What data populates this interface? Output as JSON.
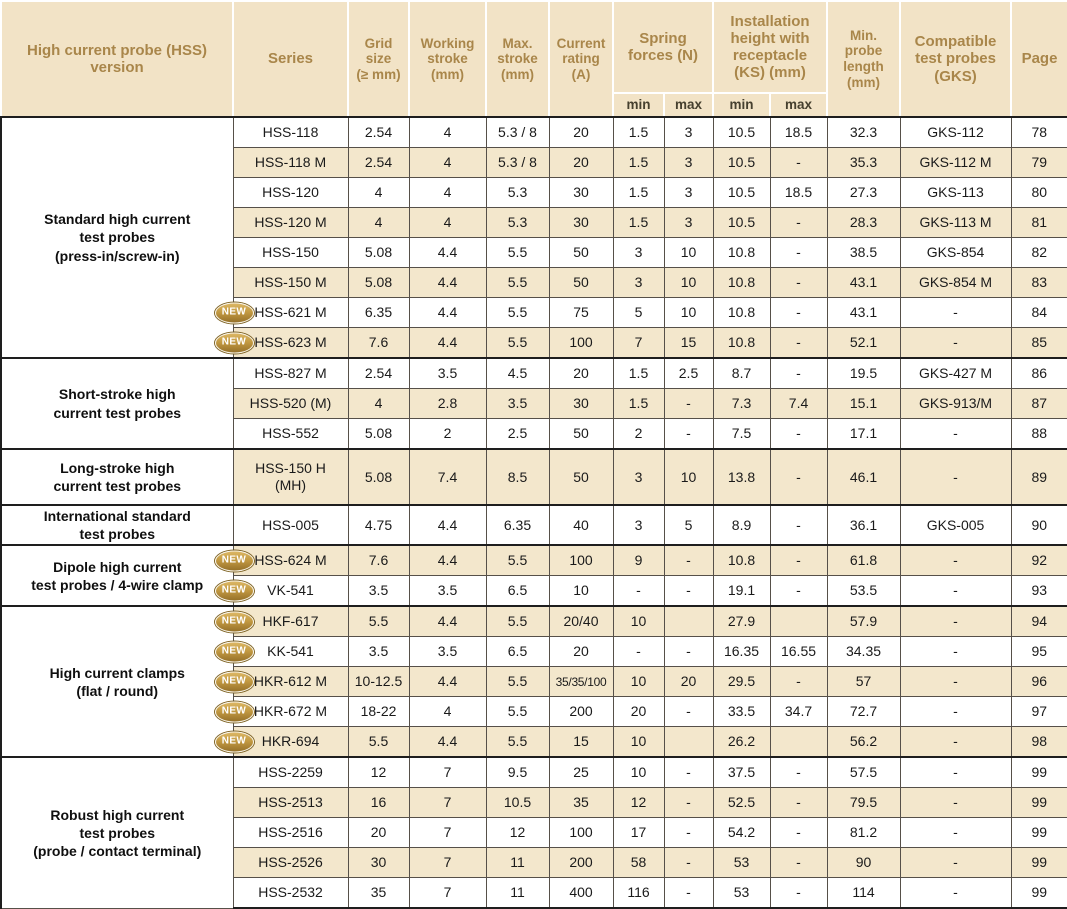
{
  "new_badge": "NEW",
  "table": {
    "columns": [
      {
        "id": "version",
        "label": "High current probe (HSS)\nversion"
      },
      {
        "id": "series",
        "label": "Series"
      },
      {
        "id": "grid",
        "label": "Grid\nsize\n(≥ mm)",
        "small": true
      },
      {
        "id": "stroke",
        "label": "Working\nstroke\n(mm)",
        "small": true
      },
      {
        "id": "max-stroke",
        "label": "Max.\nstroke\n(mm)",
        "small": true
      },
      {
        "id": "current",
        "label": "Current\nrating\n(A)",
        "small": true
      },
      {
        "id": "spring",
        "label": "Spring\nforces (N)",
        "subs": [
          "min",
          "max"
        ]
      },
      {
        "id": "install",
        "label": "Installation\nheight with\nreceptacle\n(KS) (mm)",
        "subs": [
          "min",
          "max"
        ]
      },
      {
        "id": "min-length",
        "label": "Min.\nprobe\nlength\n(mm)",
        "small": true
      },
      {
        "id": "gks",
        "label": "Compatible\ntest probes\n(GKS)"
      },
      {
        "id": "page",
        "label": "Page"
      }
    ],
    "groups": [
      {
        "category": "Standard high current\ntest probes\n(press-in/screw-in)",
        "rows": [
          {
            "series": "HSS-118",
            "grid": "2.54",
            "stroke": "4",
            "max_stroke": "5.3 / 8",
            "current": "20",
            "spring_min": "1.5",
            "spring_max": "3",
            "inst_min": "10.5",
            "inst_max": "18.5",
            "min_length": "32.3",
            "gks": "GKS-112",
            "page": "78"
          },
          {
            "series": "HSS-118 M",
            "grid": "2.54",
            "stroke": "4",
            "max_stroke": "5.3 / 8",
            "current": "20",
            "spring_min": "1.5",
            "spring_max": "3",
            "inst_min": "10.5",
            "inst_max": "-",
            "min_length": "35.3",
            "gks": "GKS-112 M",
            "page": "79"
          },
          {
            "series": "HSS-120",
            "grid": "4",
            "stroke": "4",
            "max_stroke": "5.3",
            "current": "30",
            "spring_min": "1.5",
            "spring_max": "3",
            "inst_min": "10.5",
            "inst_max": "18.5",
            "min_length": "27.3",
            "gks": "GKS-113",
            "page": "80"
          },
          {
            "series": "HSS-120 M",
            "grid": "4",
            "stroke": "4",
            "max_stroke": "5.3",
            "current": "30",
            "spring_min": "1.5",
            "spring_max": "3",
            "inst_min": "10.5",
            "inst_max": "-",
            "min_length": "28.3",
            "gks": "GKS-113 M",
            "page": "81"
          },
          {
            "series": "HSS-150",
            "grid": "5.08",
            "stroke": "4.4",
            "max_stroke": "5.5",
            "current": "50",
            "spring_min": "3",
            "spring_max": "10",
            "inst_min": "10.8",
            "inst_max": "-",
            "min_length": "38.5",
            "gks": "GKS-854",
            "page": "82"
          },
          {
            "series": "HSS-150 M",
            "grid": "5.08",
            "stroke": "4.4",
            "max_stroke": "5.5",
            "current": "50",
            "spring_min": "3",
            "spring_max": "10",
            "inst_min": "10.8",
            "inst_max": "-",
            "min_length": "43.1",
            "gks": "GKS-854 M",
            "page": "83"
          },
          {
            "new": true,
            "series": "HSS-621 M",
            "grid": "6.35",
            "stroke": "4.4",
            "max_stroke": "5.5",
            "current": "75",
            "spring_min": "5",
            "spring_max": "10",
            "inst_min": "10.8",
            "inst_max": "-",
            "min_length": "43.1",
            "gks": "-",
            "page": "84"
          },
          {
            "new": true,
            "series": "HSS-623 M",
            "grid": "7.6",
            "stroke": "4.4",
            "max_stroke": "5.5",
            "current": "100",
            "spring_min": "7",
            "spring_max": "15",
            "inst_min": "10.8",
            "inst_max": "-",
            "min_length": "52.1",
            "gks": "-",
            "page": "85"
          }
        ]
      },
      {
        "category": "Short-stroke high\ncurrent test  probes",
        "rows": [
          {
            "series": "HSS-827 M",
            "grid": "2.54",
            "stroke": "3.5",
            "max_stroke": "4.5",
            "current": "20",
            "spring_min": "1.5",
            "spring_max": "2.5",
            "inst_min": "8.7",
            "inst_max": "-",
            "min_length": "19.5",
            "gks": "GKS-427 M",
            "page": "86"
          },
          {
            "series": "HSS-520 (M)",
            "grid": "4",
            "stroke": "2.8",
            "max_stroke": "3.5",
            "current": "30",
            "spring_min": "1.5",
            "spring_max": "-",
            "inst_min": "7.3",
            "inst_max": "7.4",
            "min_length": "15.1",
            "gks": "GKS-913/M",
            "page": "87"
          },
          {
            "series": "HSS-552",
            "grid": "5.08",
            "stroke": "2",
            "max_stroke": "2.5",
            "current": "50",
            "spring_min": "2",
            "spring_max": "-",
            "inst_min": "7.5",
            "inst_max": "-",
            "min_length": "17.1",
            "gks": "-",
            "page": "88"
          }
        ]
      },
      {
        "category": "Long-stroke high\ncurrent test probes",
        "rows": [
          {
            "tall": true,
            "series": "HSS-150 H\n(MH)",
            "grid": "5.08",
            "stroke": "7.4",
            "max_stroke": "8.5",
            "current": "50",
            "spring_min": "3",
            "spring_max": "10",
            "inst_min": "13.8",
            "inst_max": "-",
            "min_length": "46.1",
            "gks": "-",
            "page": "89"
          }
        ]
      },
      {
        "category": "International standard\ntest probes",
        "rows": [
          {
            "series": "HSS-005",
            "grid": "4.75",
            "stroke": "4.4",
            "max_stroke": "6.35",
            "current": "40",
            "spring_min": "3",
            "spring_max": "5",
            "inst_min": "8.9",
            "inst_max": "-",
            "min_length": "36.1",
            "gks": "GKS-005",
            "page": "90"
          }
        ]
      },
      {
        "category": "Dipole high current\ntest probes / 4-wire clamp",
        "rows": [
          {
            "new": true,
            "series": "HSS-624 M",
            "grid": "7.6",
            "stroke": "4.4",
            "max_stroke": "5.5",
            "current": "100",
            "spring_min": "9",
            "spring_max": "-",
            "inst_min": "10.8",
            "inst_max": "-",
            "min_length": "61.8",
            "gks": "-",
            "page": "92"
          },
          {
            "new": true,
            "series": "VK-541",
            "grid": "3.5",
            "stroke": "3.5",
            "max_stroke": "6.5",
            "current": "10",
            "spring_min": "-",
            "spring_max": "-",
            "inst_min": "19.1",
            "inst_max": "-",
            "min_length": "53.5",
            "gks": "-",
            "page": "93"
          }
        ]
      },
      {
        "category": "High current clamps\n(flat / round)",
        "rows": [
          {
            "new": true,
            "series": "HKF-617",
            "grid": "5.5",
            "stroke": "4.4",
            "max_stroke": "5.5",
            "current": "20/40",
            "spring_min": "10",
            "spring_max": "",
            "inst_min": "27.9",
            "inst_max": "",
            "min_length": "57.9",
            "gks": "-",
            "page": "94"
          },
          {
            "new": true,
            "series": "KK-541",
            "grid": "3.5",
            "stroke": "3.5",
            "max_stroke": "6.5",
            "current": "20",
            "spring_min": "-",
            "spring_max": "-",
            "inst_min": "16.35",
            "inst_max": "16.55",
            "min_length": "34.35",
            "gks": "-",
            "page": "95"
          },
          {
            "new": true,
            "series": "HKR-612 M",
            "grid": "10-12.5",
            "stroke": "4.4",
            "max_stroke": "5.5",
            "current": "35/35/100",
            "spring_min": "10",
            "spring_max": "20",
            "inst_min": "29.5",
            "inst_max": "-",
            "min_length": "57",
            "gks": "-",
            "page": "96"
          },
          {
            "new": true,
            "series": "HKR-672 M",
            "grid": "18-22",
            "stroke": "4",
            "max_stroke": "5.5",
            "current": "200",
            "spring_min": "20",
            "spring_max": "-",
            "inst_min": "33.5",
            "inst_max": "34.7",
            "min_length": "72.7",
            "gks": "-",
            "page": "97"
          },
          {
            "new": true,
            "series": "HKR-694",
            "grid": "5.5",
            "stroke": "4.4",
            "max_stroke": "5.5",
            "current": "15",
            "spring_min": "10",
            "spring_max": "",
            "inst_min": "26.2",
            "inst_max": "",
            "min_length": "56.2",
            "gks": "-",
            "page": "98"
          }
        ]
      },
      {
        "category": "Robust high current\ntest probes\n(probe / contact terminal)",
        "rows": [
          {
            "series": "HSS-2259",
            "grid": "12",
            "stroke": "7",
            "max_stroke": "9.5",
            "current": "25",
            "spring_min": "10",
            "spring_max": "-",
            "inst_min": "37.5",
            "inst_max": "-",
            "min_length": "57.5",
            "gks": "-",
            "page": "99"
          },
          {
            "series": "HSS-2513",
            "grid": "16",
            "stroke": "7",
            "max_stroke": "10.5",
            "current": "35",
            "spring_min": "12",
            "spring_max": "-",
            "inst_min": "52.5",
            "inst_max": "-",
            "min_length": "79.5",
            "gks": "-",
            "page": "99"
          },
          {
            "series": "HSS-2516",
            "grid": "20",
            "stroke": "7",
            "max_stroke": "12",
            "current": "100",
            "spring_min": "17",
            "spring_max": "-",
            "inst_min": "54.2",
            "inst_max": "-",
            "min_length": "81.2",
            "gks": "-",
            "page": "99"
          },
          {
            "series": "HSS-2526",
            "grid": "30",
            "stroke": "7",
            "max_stroke": "11",
            "current": "200",
            "spring_min": "58",
            "spring_max": "-",
            "inst_min": "53",
            "inst_max": "-",
            "min_length": "90",
            "gks": "-",
            "page": "99"
          },
          {
            "series": "HSS-2532",
            "grid": "35",
            "stroke": "7",
            "max_stroke": "11",
            "current": "400",
            "spring_min": "116",
            "spring_max": "-",
            "inst_min": "53",
            "inst_max": "-",
            "min_length": "114",
            "gks": "-",
            "page": "99"
          }
        ]
      }
    ],
    "colors": {
      "header_bg": "#f2e3c6",
      "header_text": "#a9864a",
      "row_alt_bg": "#f3e7cc",
      "border_thick": "#1e1e1e",
      "border_thin": "#565049",
      "badge_gold": "#c39a42"
    }
  }
}
